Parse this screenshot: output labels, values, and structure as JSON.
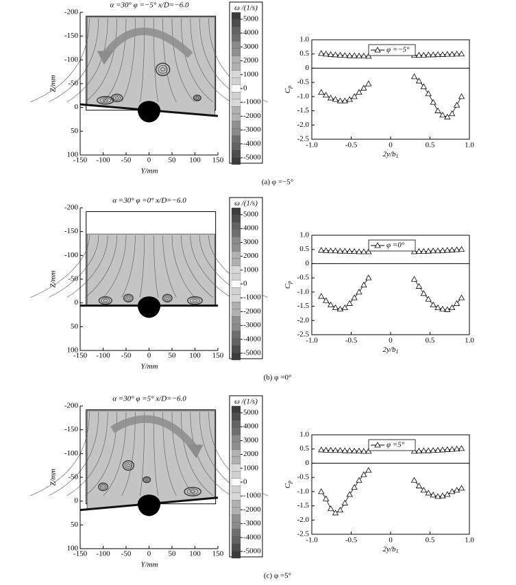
{
  "chart_data": [
    {
      "type": "field",
      "title": "α =30° φ =−5°  x/D=−6.0",
      "xlabel": "Y/mm",
      "ylabel": "Z/mm",
      "xlim": [
        -150,
        150
      ],
      "xticks": [
        -150,
        -100,
        -50,
        0,
        50,
        100,
        150
      ],
      "ylim": [
        -200,
        100
      ],
      "yticks": [
        -200,
        -150,
        -100,
        -50,
        0,
        50,
        100
      ],
      "colorbar_label": "ω /(1/s)",
      "colorbar_ticks": [
        5000,
        4000,
        3000,
        2000,
        1000,
        0,
        -1000,
        -2000,
        -3000,
        -4000,
        -5000
      ]
    },
    {
      "type": "line",
      "caption": "(a) φ =−5°",
      "ylabel": "C",
      "ylabel_sub": "p",
      "xlabel": "2y/b",
      "xlabel_sub": "1",
      "legend": "upper center",
      "zero_line": true,
      "color": "#000000",
      "xlim": [
        -1,
        1
      ],
      "xticks": [
        {
          "value": -1,
          "label": "-1.0"
        },
        -0.5,
        0,
        0.5,
        {
          "value": 1,
          "label": "1.0"
        }
      ],
      "ylim": [
        -2.5,
        1
      ],
      "yticks": [
        {
          "value": 1,
          "label": "1.0"
        },
        0.5,
        0,
        -0.5,
        {
          "value": -1,
          "label": "-1.0"
        },
        -1.5,
        {
          "value": -2,
          "label": "-2.0"
        },
        -2.5
      ],
      "x": [
        -0.88,
        -0.82,
        -0.76,
        -0.7,
        -0.64,
        -0.58,
        -0.52,
        -0.46,
        -0.4,
        -0.34,
        -0.28,
        0,
        0.3,
        0.36,
        0.42,
        0.48,
        0.54,
        0.6,
        0.66,
        0.72,
        0.78,
        0.84,
        0.9
      ],
      "series": [
        {
          "name": "φ =−5°",
          "values": [
            -0.85,
            -0.95,
            -1.05,
            -1.1,
            -1.15,
            -1.15,
            -1.1,
            -1.0,
            -0.85,
            -0.7,
            -0.55,
            null,
            -0.3,
            -0.45,
            -0.65,
            -0.9,
            -1.2,
            -1.5,
            -1.65,
            -1.72,
            -1.6,
            -1.3,
            -1.0
          ]
        },
        {
          "values": [
            0.52,
            0.5,
            0.48,
            0.47,
            0.46,
            0.45,
            0.44,
            0.44,
            0.43,
            0.43,
            0.42,
            null,
            0.45,
            0.46,
            0.46,
            0.47,
            0.47,
            0.48,
            0.48,
            0.49,
            0.49,
            0.5,
            0.5
          ]
        }
      ]
    },
    {
      "type": "field",
      "title": "α =30° φ =0°  x/D=−6.0",
      "xlabel": "Y/mm",
      "ylabel": "Z/mm",
      "xlim": [
        -150,
        150
      ],
      "xticks": [
        -150,
        -100,
        -50,
        0,
        50,
        100,
        150
      ],
      "ylim": [
        -200,
        100
      ],
      "yticks": [
        -200,
        -150,
        -100,
        -50,
        0,
        50,
        100
      ],
      "colorbar_label": "ω /(1/s)",
      "colorbar_ticks": [
        5000,
        4000,
        3000,
        2000,
        1000,
        0,
        -1000,
        -2000,
        -3000,
        -4000,
        -5000
      ]
    },
    {
      "type": "line",
      "caption": "(b) φ =0°",
      "ylabel": "C",
      "ylabel_sub": "p",
      "xlabel": "2y/b",
      "xlabel_sub": "1",
      "legend": "upper center",
      "zero_line": true,
      "color": "#000000",
      "xlim": [
        -1,
        1
      ],
      "xticks": [
        {
          "value": -1,
          "label": "-1.0"
        },
        -0.5,
        0,
        0.5,
        {
          "value": 1,
          "label": "1.0"
        }
      ],
      "ylim": [
        -2.5,
        1
      ],
      "yticks": [
        {
          "value": 1,
          "label": "1.0"
        },
        0.5,
        0,
        -0.5,
        {
          "value": -1,
          "label": "-1.0"
        },
        -1.5,
        {
          "value": -2,
          "label": "-2.0"
        },
        -2.5
      ],
      "x": [
        -0.88,
        -0.82,
        -0.76,
        -0.7,
        -0.64,
        -0.58,
        -0.52,
        -0.46,
        -0.4,
        -0.34,
        -0.28,
        0,
        0.3,
        0.36,
        0.42,
        0.48,
        0.54,
        0.6,
        0.66,
        0.72,
        0.78,
        0.84,
        0.9
      ],
      "series": [
        {
          "name": "φ =0°",
          "values": [
            -1.15,
            -1.3,
            -1.45,
            -1.55,
            -1.6,
            -1.55,
            -1.4,
            -1.2,
            -1.0,
            -0.75,
            -0.5,
            null,
            -0.55,
            -0.8,
            -1.05,
            -1.25,
            -1.45,
            -1.55,
            -1.6,
            -1.62,
            -1.55,
            -1.4,
            -1.2
          ]
        },
        {
          "values": [
            0.47,
            0.46,
            0.45,
            0.45,
            0.44,
            0.44,
            0.43,
            0.43,
            0.42,
            0.42,
            0.42,
            null,
            0.42,
            0.43,
            0.43,
            0.44,
            0.45,
            0.45,
            0.46,
            0.47,
            0.48,
            0.49,
            0.5
          ]
        }
      ]
    },
    {
      "type": "field",
      "title": "α =30° φ =5°  x/D=−6.0",
      "xlabel": "Y/mm",
      "ylabel": "Z/mm",
      "xlim": [
        -150,
        150
      ],
      "xticks": [
        -150,
        -100,
        -50,
        0,
        50,
        100,
        150
      ],
      "ylim": [
        -200,
        100
      ],
      "yticks": [
        -200,
        -150,
        -100,
        -50,
        0,
        50,
        100
      ],
      "colorbar_label": "ω /(1/s)",
      "colorbar_ticks": [
        5000,
        4000,
        3000,
        2000,
        1000,
        0,
        -1000,
        -2000,
        -3000,
        -4000,
        -5000
      ]
    },
    {
      "type": "line",
      "caption": "(c) φ =5°",
      "ylabel": "C",
      "ylabel_sub": "p",
      "xlabel": "2y/b",
      "xlabel_sub": "1",
      "legend": "upper center",
      "zero_line": true,
      "color": "#000000",
      "xlim": [
        -1,
        1
      ],
      "xticks": [
        {
          "value": -1,
          "label": "-1.0"
        },
        -0.5,
        0,
        0.5,
        {
          "value": 1,
          "label": "1.0"
        }
      ],
      "ylim": [
        -2.5,
        1
      ],
      "yticks": [
        {
          "value": 1,
          "label": "1.0"
        },
        0.5,
        0,
        -0.5,
        {
          "value": -1,
          "label": "-1.0"
        },
        -1.5,
        {
          "value": -2,
          "label": "-2.0"
        },
        -2.5
      ],
      "x": [
        -0.88,
        -0.82,
        -0.76,
        -0.7,
        -0.64,
        -0.58,
        -0.52,
        -0.46,
        -0.4,
        -0.34,
        -0.28,
        0,
        0.3,
        0.36,
        0.42,
        0.48,
        0.54,
        0.6,
        0.66,
        0.72,
        0.78,
        0.84,
        0.9
      ],
      "series": [
        {
          "name": "φ =5°",
          "values": [
            -1.0,
            -1.25,
            -1.6,
            -1.75,
            -1.65,
            -1.4,
            -1.1,
            -0.85,
            -0.6,
            -0.4,
            -0.25,
            null,
            -0.6,
            -0.8,
            -0.95,
            -1.05,
            -1.12,
            -1.17,
            -1.15,
            -1.1,
            -1.0,
            -0.95,
            -0.88
          ]
        },
        {
          "values": [
            0.47,
            0.46,
            0.46,
            0.45,
            0.45,
            0.44,
            0.44,
            0.43,
            0.43,
            0.42,
            0.42,
            null,
            0.42,
            0.43,
            0.44,
            0.44,
            0.45,
            0.46,
            0.47,
            0.48,
            0.49,
            0.5,
            0.52
          ]
        }
      ]
    }
  ]
}
